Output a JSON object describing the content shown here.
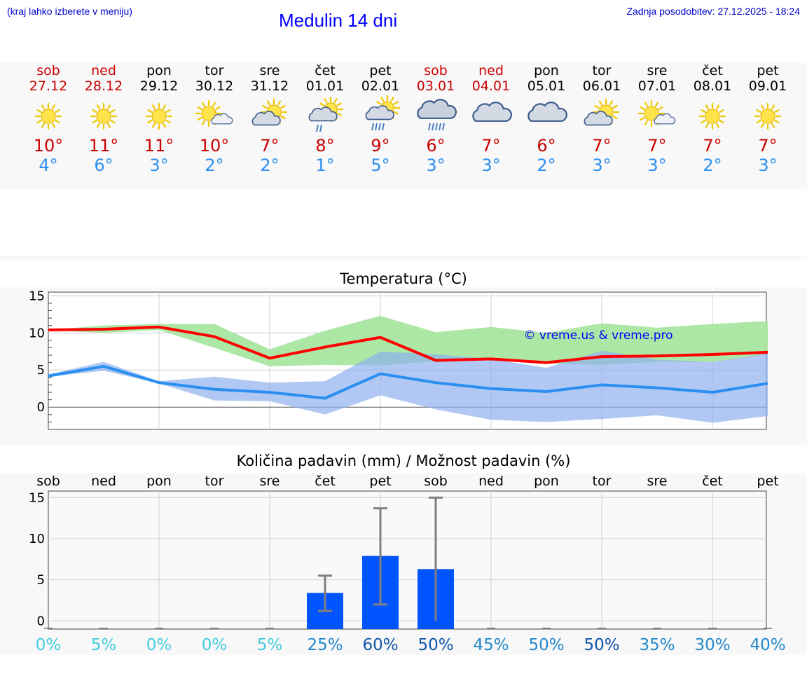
{
  "header": {
    "hint": "(kraj lahko izberete v meniju)",
    "title": "Medulin 14 dni",
    "updated": "Zadnja posodobitev: 27.12.2025 - 18:24"
  },
  "days": [
    {
      "name": "sob",
      "date": "27.12",
      "hi": "10°",
      "lo": "4°",
      "weekend": true,
      "icon": "sunny-icon"
    },
    {
      "name": "ned",
      "date": "28.12",
      "hi": "11°",
      "lo": "6°",
      "weekend": true,
      "icon": "sunny-icon"
    },
    {
      "name": "pon",
      "date": "29.12",
      "hi": "11°",
      "lo": "3°",
      "weekend": false,
      "icon": "sunny-icon"
    },
    {
      "name": "tor",
      "date": "30.12",
      "hi": "10°",
      "lo": "2°",
      "weekend": false,
      "icon": "sun-small-cloud-icon"
    },
    {
      "name": "sre",
      "date": "31.12",
      "hi": "7°",
      "lo": "2°",
      "weekend": false,
      "icon": "partly-cloudy-icon"
    },
    {
      "name": "čet",
      "date": "01.01",
      "hi": "8°",
      "lo": "1°",
      "weekend": false,
      "icon": "sun-cloud-light-rain-icon"
    },
    {
      "name": "pet",
      "date": "02.01",
      "hi": "9°",
      "lo": "5°",
      "weekend": false,
      "icon": "sun-cloud-rain-icon"
    },
    {
      "name": "sob",
      "date": "03.01",
      "hi": "6°",
      "lo": "3°",
      "weekend": true,
      "icon": "cloud-rain-icon"
    },
    {
      "name": "ned",
      "date": "04.01",
      "hi": "7°",
      "lo": "3°",
      "weekend": true,
      "icon": "cloudy-icon"
    },
    {
      "name": "pon",
      "date": "05.01",
      "hi": "6°",
      "lo": "2°",
      "weekend": false,
      "icon": "cloudy-icon"
    },
    {
      "name": "tor",
      "date": "06.01",
      "hi": "7°",
      "lo": "3°",
      "weekend": false,
      "icon": "partly-cloudy-icon"
    },
    {
      "name": "sre",
      "date": "07.01",
      "hi": "7°",
      "lo": "3°",
      "weekend": false,
      "icon": "sun-small-cloud-icon"
    },
    {
      "name": "čet",
      "date": "08.01",
      "hi": "7°",
      "lo": "2°",
      "weekend": false,
      "icon": "sunny-icon"
    },
    {
      "name": "pet",
      "date": "09.01",
      "hi": "7°",
      "lo": "3°",
      "weekend": false,
      "icon": "sunny-icon"
    }
  ],
  "chart_data": [
    {
      "type": "line",
      "title": "Temperatura (°C)",
      "watermark": "© vreme.us & vreme.pro",
      "ylim": [
        -3,
        15.5
      ],
      "yticks": [
        0,
        5,
        10,
        15
      ],
      "x": [
        0,
        1,
        2,
        3,
        4,
        5,
        6,
        7,
        8,
        9,
        10,
        11,
        12,
        13
      ],
      "series": [
        {
          "name": "max",
          "color": "#ff0000",
          "values": [
            10.4,
            10.5,
            10.8,
            9.5,
            6.6,
            8.1,
            9.4,
            6.3,
            6.5,
            6.0,
            6.8,
            6.9,
            7.1,
            7.4
          ],
          "band_low": [
            10.4,
            10.0,
            10.4,
            8.0,
            5.5,
            5.7,
            5.6,
            6.2,
            6.5,
            5.9,
            5.7,
            6.1,
            6.1,
            7.1
          ],
          "band_high": [
            10.4,
            11.0,
            11.2,
            11.2,
            7.8,
            10.3,
            12.3,
            10.1,
            10.8,
            10.0,
            11.3,
            10.7,
            11.2,
            11.6
          ]
        },
        {
          "name": "min",
          "color": "#2a8ff0",
          "values": [
            4.2,
            5.5,
            3.3,
            2.4,
            2.0,
            1.2,
            4.5,
            3.3,
            2.5,
            2.1,
            3.0,
            2.6,
            2.0,
            3.2
          ],
          "band_low": [
            4.1,
            4.9,
            3.2,
            0.9,
            0.8,
            -1.0,
            1.6,
            -0.3,
            -1.7,
            -2.0,
            -1.6,
            -1.1,
            -2.1,
            -1.2
          ],
          "band_high": [
            4.4,
            6.1,
            3.5,
            4.1,
            3.3,
            3.5,
            7.5,
            7.1,
            6.5,
            5.3,
            7.6,
            6.4,
            6.1,
            7.2
          ]
        }
      ]
    },
    {
      "type": "bar",
      "title": "Količina padavin (mm) / Možnost padavin (%)",
      "ylim": [
        -1,
        15.8
      ],
      "yticks": [
        0,
        5,
        10,
        15
      ],
      "categories": [
        "sob",
        "ned",
        "pon",
        "tor",
        "sre",
        "čet",
        "pet",
        "sob",
        "ned",
        "pon",
        "tor",
        "sre",
        "čet",
        "pet"
      ],
      "values": [
        0,
        0,
        0,
        0,
        0,
        3.4,
        7.9,
        6.3,
        0,
        0,
        0,
        0,
        0,
        0
      ],
      "err_low": [
        0,
        0,
        0,
        0,
        0,
        1.2,
        2.0,
        0,
        0,
        0,
        0,
        0,
        0,
        0
      ],
      "err_high": [
        0,
        0,
        0,
        0,
        0,
        5.5,
        13.7,
        15.0,
        0,
        0,
        0,
        0,
        0,
        0
      ],
      "probabilities": [
        "0%",
        "5%",
        "0%",
        "0%",
        "5%",
        "25%",
        "60%",
        "50%",
        "45%",
        "50%",
        "50%",
        "35%",
        "30%",
        "40%"
      ],
      "prob_colors": [
        "#44ccdd",
        "#44ccdd",
        "#44ccdd",
        "#44ccdd",
        "#44ccdd",
        "#2288cc",
        "#1155aa",
        "#1155aa",
        "#2288cc",
        "#2288cc",
        "#1155aa",
        "#2288cc",
        "#2288cc",
        "#2288cc"
      ],
      "bar_color": "#0055ff"
    }
  ]
}
